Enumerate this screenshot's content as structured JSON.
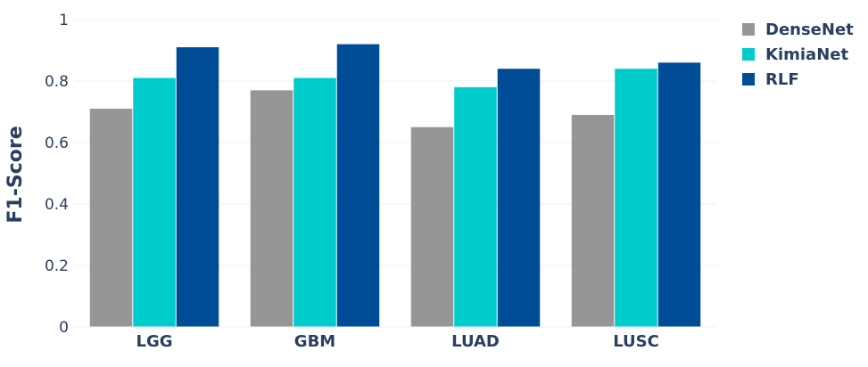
{
  "chart_data": {
    "type": "bar",
    "title": "",
    "xlabel": "",
    "ylabel": "F1-Score",
    "ylim": [
      0,
      1
    ],
    "yticks": [
      "0",
      "0.2",
      "0.4",
      "0.6",
      "0.8",
      "1"
    ],
    "grid": true,
    "legend_position": "top-right",
    "categories": [
      "LGG",
      "GBM",
      "LUAD",
      "LUSC"
    ],
    "series": [
      {
        "name": "DenseNet",
        "color": "#969696",
        "values": [
          0.71,
          0.77,
          0.65,
          0.69
        ]
      },
      {
        "name": "KimiaNet",
        "color": "#00cccc",
        "values": [
          0.81,
          0.81,
          0.78,
          0.84
        ]
      },
      {
        "name": "RLF",
        "color": "#004c97",
        "values": [
          0.91,
          0.92,
          0.84,
          0.86
        ]
      }
    ]
  }
}
